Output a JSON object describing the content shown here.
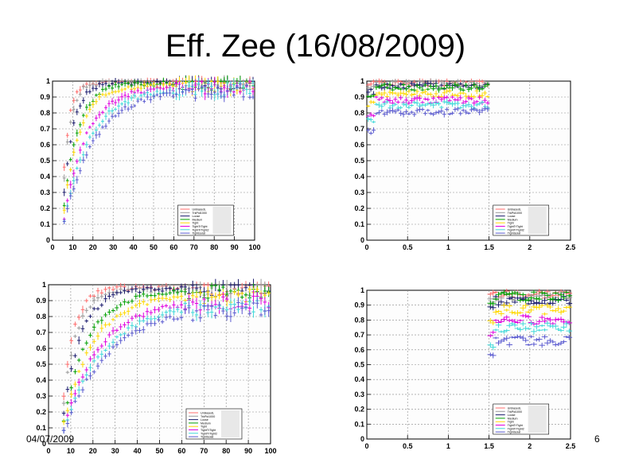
{
  "slide": {
    "title": "Eff. Zee (16/08/2009)",
    "date": "04/07/2009",
    "page": "6"
  },
  "series_styles": [
    {
      "name": "UnbiasedL",
      "color": "#ff6b6b"
    },
    {
      "name": "TrkPid1000",
      "color": "#9a9a9a"
    },
    {
      "name": "Loose",
      "color": "#1b1b6e"
    },
    {
      "name": "Medium",
      "color": "#00a000"
    },
    {
      "name": "Tight",
      "color": "#ffd800"
    },
    {
      "name": "TightTrTight",
      "color": "#e000e0"
    },
    {
      "name": "TightTrTight2",
      "color": "#3fd9d9"
    },
    {
      "name": "TightIsolat",
      "color": "#5a5ad0"
    }
  ],
  "chart_data": [
    {
      "type": "scatter",
      "title": "",
      "xlabel": "",
      "ylabel": "",
      "xlim": [
        0,
        100
      ],
      "ylim": [
        0,
        1
      ],
      "xticks": [
        "0",
        "10",
        "20",
        "30",
        "40",
        "50",
        "60",
        "70",
        "80",
        "90",
        "100"
      ],
      "yticks": [
        "0",
        "0.1",
        "0.2",
        "0.3",
        "0.4",
        "0.5",
        "0.6",
        "0.7",
        "0.8",
        "0.9",
        "1"
      ],
      "legend": [
        "UnbiasedL",
        "TrkPid1000",
        "Loose",
        "Medium",
        "Tight",
        "TightTrTight",
        "TightTrTight2",
        "TightIsolat"
      ],
      "curve": "turnon",
      "x_start": 5,
      "x_end": 100,
      "n_points": 60,
      "plateau": [
        0.995,
        0.99,
        0.995,
        0.985,
        0.975,
        0.96,
        0.95,
        0.94
      ],
      "scale": [
        3,
        3.5,
        5,
        7,
        8,
        11,
        13,
        15
      ]
    },
    {
      "type": "scatter",
      "title": "",
      "xlabel": "",
      "ylabel": "",
      "xlim": [
        0,
        2.5
      ],
      "ylim": [
        0,
        1
      ],
      "xticks": [
        "0",
        "0.5",
        "1",
        "1.5",
        "2",
        "2.5"
      ],
      "yticks": [
        "0",
        "0.1",
        "0.2",
        "0.3",
        "0.4",
        "0.5",
        "0.6",
        "0.7",
        "0.8",
        "0.9",
        "1"
      ],
      "legend": [
        "UnbiasedL",
        "TrkPid1000",
        "Loose",
        "Medium",
        "Tight",
        "TightTrTight",
        "TightTrTight2",
        "TightIsolat"
      ],
      "curve": "flat",
      "x_start": 0.0,
      "x_end": 1.5,
      "n_points": 45,
      "level": [
        0.99,
        0.985,
        0.97,
        0.96,
        0.92,
        0.88,
        0.85,
        0.81
      ],
      "spread": 0.02
    },
    {
      "type": "scatter",
      "title": "",
      "xlabel": "",
      "ylabel": "",
      "xlim": [
        0,
        100
      ],
      "ylim": [
        0,
        1
      ],
      "xticks": [
        "0",
        "10",
        "20",
        "30",
        "40",
        "50",
        "60",
        "70",
        "80",
        "90",
        "100"
      ],
      "yticks": [
        "0",
        "0.1",
        "0.2",
        "0.3",
        "0.4",
        "0.5",
        "0.6",
        "0.7",
        "0.8",
        "0.9",
        "1"
      ],
      "legend": [
        "UnbiasedL",
        "TrkPid1000",
        "Loose",
        "Medium",
        "Tight",
        "TightTrTight",
        "TightTrTight2",
        "TightIsolat"
      ],
      "curve": "turnon",
      "x_start": 6,
      "x_end": 100,
      "n_points": 55,
      "plateau": [
        0.98,
        0.97,
        0.975,
        0.96,
        0.93,
        0.9,
        0.88,
        0.86
      ],
      "scale": [
        5,
        6,
        8,
        11,
        13,
        16,
        18,
        20
      ]
    },
    {
      "type": "scatter",
      "title": "",
      "xlabel": "",
      "ylabel": "",
      "xlim": [
        0,
        2.5
      ],
      "ylim": [
        0,
        1
      ],
      "xticks": [
        "0",
        "0.5",
        "1",
        "1.5",
        "2",
        "2.5"
      ],
      "yticks": [
        "0",
        "0.1",
        "0.2",
        "0.3",
        "0.4",
        "0.5",
        "0.6",
        "0.7",
        "0.8",
        "0.9",
        "1"
      ],
      "legend": [
        "UnbiasedL",
        "TrkPid1000",
        "Loose",
        "Medium",
        "Tight",
        "TightTrTight",
        "TightTrTight2",
        "TightIsolat"
      ],
      "curve": "flat",
      "x_start": 1.5,
      "x_end": 2.5,
      "n_points": 30,
      "level": [
        0.97,
        0.96,
        0.93,
        0.96,
        0.87,
        0.8,
        0.75,
        0.66
      ],
      "spread": 0.03
    }
  ]
}
